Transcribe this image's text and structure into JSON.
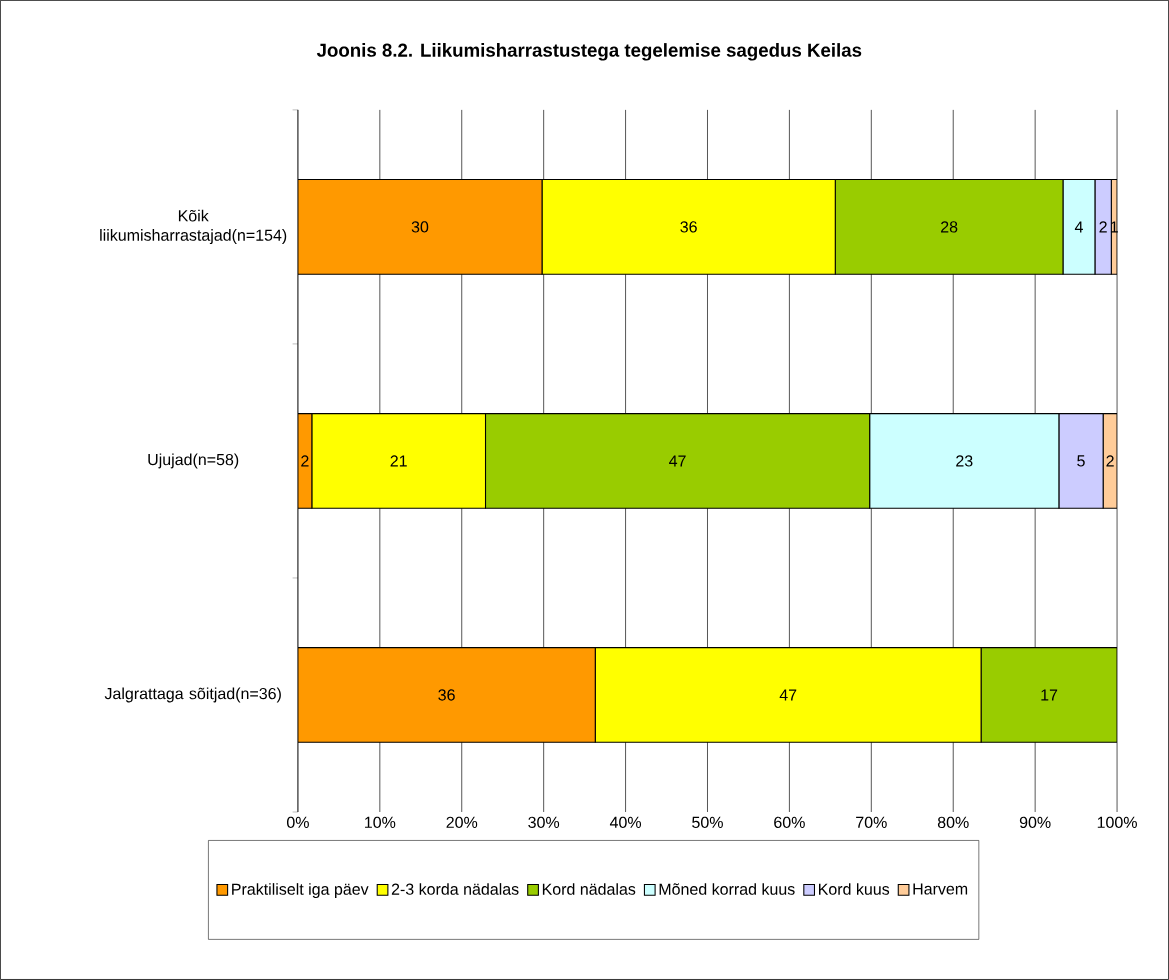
{
  "chart_data": {
    "type": "bar",
    "orientation": "horizontal",
    "stacked": true,
    "title": "Joonis 8.2. Liikumisharrastustega tegelemise sagedus Keilas",
    "categories": [
      "Kõik liikumisharrastajad(n=154)",
      "Ujujad(n=58)",
      "Jalgrattaga sõitjad(n=36)"
    ],
    "series": [
      {
        "name": "Praktiliselt iga päev",
        "color": "#ff9900",
        "values": [
          29.8,
          1.7,
          36.3
        ],
        "value_labels": [
          "30",
          "2",
          "36"
        ]
      },
      {
        "name": "2-3 korda nädalas",
        "color": "#ffff00",
        "values": [
          35.8,
          21.2,
          47.1
        ],
        "value_labels": [
          "36",
          "21",
          "47"
        ]
      },
      {
        "name": "Kord nädalas",
        "color": "#99cc00",
        "values": [
          27.8,
          46.9,
          16.6
        ],
        "value_labels": [
          "28",
          "47",
          "17"
        ]
      },
      {
        "name": "Mõned korrad kuus",
        "color": "#ccffff",
        "values": [
          3.9,
          23.1,
          null
        ],
        "value_labels": [
          "4",
          "23",
          null
        ]
      },
      {
        "name": "Kord kuus",
        "color": "#ccccff",
        "values": [
          2.0,
          5.4,
          null
        ],
        "value_labels": [
          "2",
          "5",
          null
        ]
      },
      {
        "name": "Harvem",
        "color": "#ffcc99",
        "values": [
          0.7,
          1.7,
          null
        ],
        "value_labels": [
          "1",
          "2",
          null
        ]
      }
    ],
    "xlim": [
      0,
      100
    ],
    "xticks": [
      {
        "value": 0,
        "label": "0%"
      },
      {
        "value": 10,
        "label": "10%"
      },
      {
        "value": 20,
        "label": "20%"
      },
      {
        "value": 30,
        "label": "30%"
      },
      {
        "value": 40,
        "label": "40%"
      },
      {
        "value": 50,
        "label": "50%"
      },
      {
        "value": 60,
        "label": "60%"
      },
      {
        "value": 70,
        "label": "70%"
      },
      {
        "value": 80,
        "label": "80%"
      },
      {
        "value": 90,
        "label": "90%"
      },
      {
        "value": 100,
        "label": "100%"
      }
    ],
    "grid": "x",
    "legend": "bottom"
  }
}
